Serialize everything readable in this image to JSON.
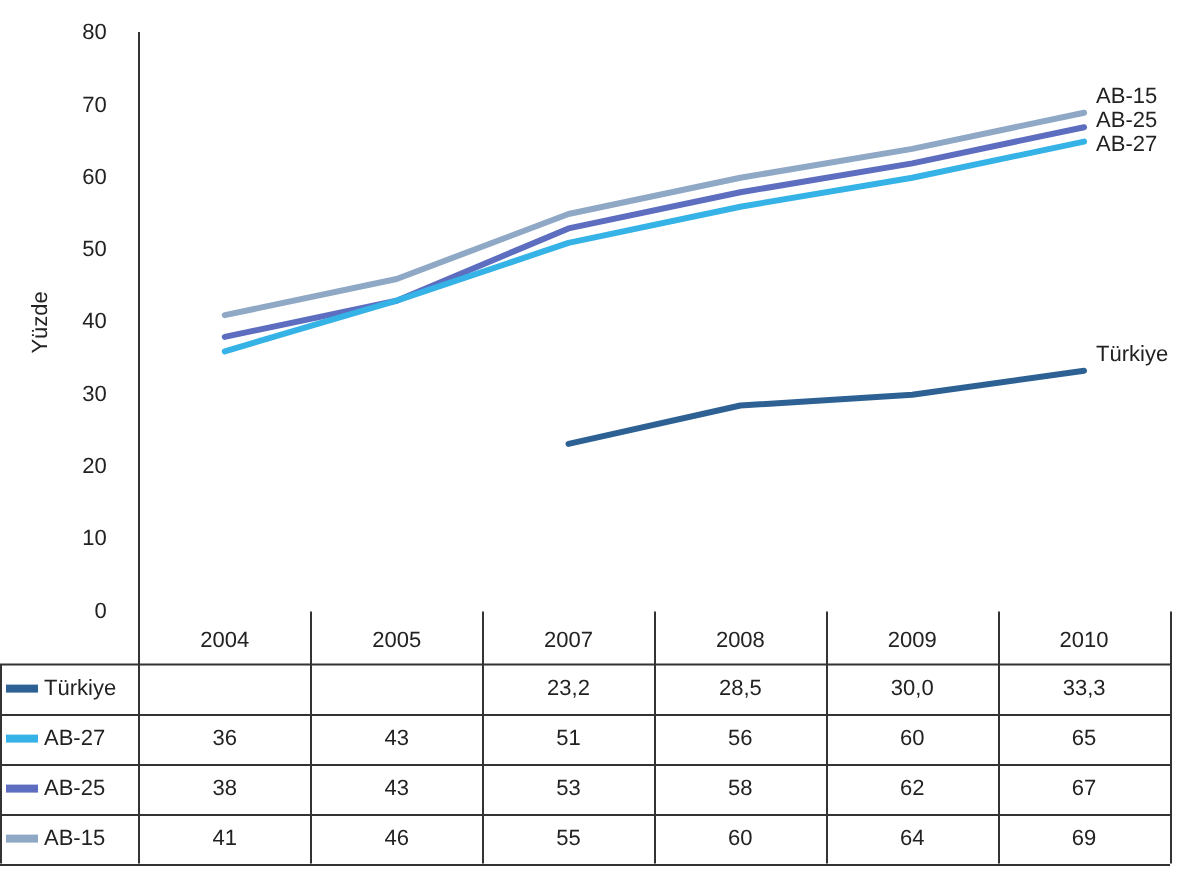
{
  "chart_data": {
    "type": "line",
    "ylabel": "Yüzde",
    "categories": [
      "2004",
      "2005",
      "2007",
      "2008",
      "2009",
      "2010"
    ],
    "series": [
      {
        "name": "Türkiye",
        "color": "#2e6193",
        "values": [
          null,
          null,
          23.2,
          28.5,
          30.0,
          33.3
        ],
        "value_labels": [
          null,
          null,
          "23,2",
          "28,5",
          "30,0",
          "33,3"
        ]
      },
      {
        "name": "AB-27",
        "color": "#35b3e6",
        "values": [
          36,
          43,
          51,
          56,
          60,
          65
        ]
      },
      {
        "name": "AB-25",
        "color": "#5d6dbf",
        "values": [
          38,
          43,
          53,
          58,
          62,
          67
        ]
      },
      {
        "name": "AB-15",
        "color": "#8ea8c6",
        "values": [
          41,
          46,
          55,
          60,
          64,
          69
        ]
      }
    ],
    "ylim": [
      0,
      80
    ],
    "yticks": [
      0,
      10,
      20,
      30,
      40,
      50,
      60,
      70,
      80
    ],
    "grid": false,
    "legend": "bottom",
    "data_labels": true,
    "marker": "none",
    "line_style": "solid"
  }
}
